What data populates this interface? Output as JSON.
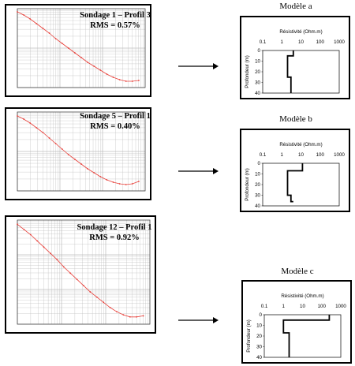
{
  "soundings": [
    {
      "title": "Sondage 1 – Profil 3",
      "rms": "RMS = 0.57%"
    },
    {
      "title": "Sondage 5 – Profil 1",
      "rms": "RMS = 0.40%"
    },
    {
      "title": "Sondage 12 – Profil 1",
      "rms": "RMS = 0.92%"
    }
  ],
  "models": [
    {
      "title": "Modèle a",
      "xlabel": "Résistivité (Ohm.m)",
      "ylabel": "Profondeur (m)",
      "xticks": [
        "0.1",
        "1",
        "10",
        "100",
        "1000"
      ],
      "yticks": [
        "0",
        "10",
        "20",
        "30",
        "40"
      ]
    },
    {
      "title": "Modèle b",
      "xlabel": "Résistivité (Ohm.m)",
      "ylabel": "Profondeur (m)",
      "xticks": [
        "0.1",
        "1",
        "10",
        "100",
        "1000"
      ],
      "yticks": [
        "0",
        "10",
        "20",
        "30",
        "40"
      ]
    },
    {
      "title": "Modèle c",
      "xlabel": "Résistivité (Ohm.m)",
      "ylabel": "Profondeur (m)",
      "xticks": [
        "0.1",
        "1",
        "10",
        "100",
        "1000"
      ],
      "yticks": [
        "0",
        "10",
        "20",
        "30",
        "40"
      ]
    }
  ],
  "colors": {
    "curve": "#e8403a",
    "grid": "#bbbbbb",
    "frame": "#000000"
  },
  "chart_data": [
    {
      "type": "scatter",
      "series": [
        {
          "values": [
            [
              0.0,
              0.96
            ],
            [
              0.05,
              0.92
            ],
            [
              0.1,
              0.87
            ],
            [
              0.15,
              0.81
            ],
            [
              0.2,
              0.75
            ],
            [
              0.25,
              0.69
            ],
            [
              0.3,
              0.62
            ],
            [
              0.35,
              0.56
            ],
            [
              0.4,
              0.5
            ],
            [
              0.45,
              0.44
            ],
            [
              0.5,
              0.38
            ],
            [
              0.55,
              0.32
            ],
            [
              0.6,
              0.27
            ],
            [
              0.65,
              0.22
            ],
            [
              0.7,
              0.17
            ],
            [
              0.75,
              0.13
            ],
            [
              0.8,
              0.1
            ],
            [
              0.85,
              0.08
            ],
            [
              0.9,
              0.08
            ],
            [
              0.95,
              0.09
            ]
          ]
        }
      ]
    },
    {
      "type": "scatter",
      "series": [
        {
          "values": [
            [
              0.0,
              0.95
            ],
            [
              0.05,
              0.91
            ],
            [
              0.1,
              0.86
            ],
            [
              0.15,
              0.8
            ],
            [
              0.2,
              0.74
            ],
            [
              0.25,
              0.67
            ],
            [
              0.3,
              0.6
            ],
            [
              0.35,
              0.53
            ],
            [
              0.4,
              0.46
            ],
            [
              0.45,
              0.4
            ],
            [
              0.5,
              0.34
            ],
            [
              0.55,
              0.28
            ],
            [
              0.6,
              0.23
            ],
            [
              0.65,
              0.18
            ],
            [
              0.7,
              0.14
            ],
            [
              0.75,
              0.11
            ],
            [
              0.8,
              0.09
            ],
            [
              0.85,
              0.08
            ],
            [
              0.9,
              0.09
            ],
            [
              0.95,
              0.12
            ]
          ]
        }
      ]
    },
    {
      "type": "scatter",
      "series": [
        {
          "values": [
            [
              0.0,
              0.96
            ],
            [
              0.05,
              0.91
            ],
            [
              0.1,
              0.86
            ],
            [
              0.15,
              0.8
            ],
            [
              0.2,
              0.74
            ],
            [
              0.25,
              0.68
            ],
            [
              0.3,
              0.62
            ],
            [
              0.35,
              0.55
            ],
            [
              0.4,
              0.49
            ],
            [
              0.45,
              0.43
            ],
            [
              0.5,
              0.37
            ],
            [
              0.55,
              0.31
            ],
            [
              0.6,
              0.26
            ],
            [
              0.65,
              0.21
            ],
            [
              0.7,
              0.16
            ],
            [
              0.75,
              0.12
            ],
            [
              0.8,
              0.09
            ],
            [
              0.85,
              0.07
            ],
            [
              0.9,
              0.07
            ],
            [
              0.95,
              0.08
            ]
          ]
        }
      ]
    },
    {
      "type": "line",
      "series": [
        {
          "values": [
            [
              4,
              0
            ],
            [
              4,
              5
            ],
            [
              2,
              5
            ],
            [
              2,
              25
            ],
            [
              3,
              25
            ],
            [
              3,
              40
            ]
          ]
        }
      ]
    },
    {
      "type": "line",
      "series": [
        {
          "values": [
            [
              12,
              0
            ],
            [
              12,
              7
            ],
            [
              2,
              7
            ],
            [
              2,
              30
            ],
            [
              3,
              30
            ],
            [
              3,
              36
            ],
            [
              4,
              36
            ]
          ]
        }
      ]
    },
    {
      "type": "line",
      "series": [
        {
          "values": [
            [
              250,
              0
            ],
            [
              250,
              5
            ],
            [
              1,
              5
            ],
            [
              1,
              17
            ],
            [
              2,
              17
            ],
            [
              2,
              40
            ]
          ]
        }
      ]
    }
  ]
}
